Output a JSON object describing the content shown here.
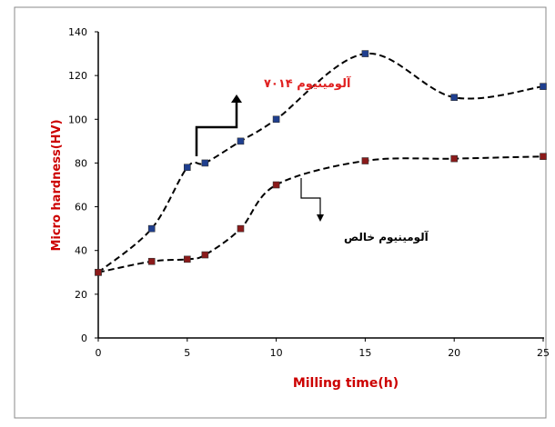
{
  "chart_data": {
    "type": "line",
    "title": "",
    "xlabel": "Milling time(h)",
    "ylabel": "Micro hardness(HV)",
    "xlim": [
      0,
      25
    ],
    "ylim": [
      0,
      140
    ],
    "x_ticks": [
      "0",
      "5",
      "10",
      "15",
      "20",
      "25"
    ],
    "y_ticks": [
      "0",
      "20",
      "40",
      "60",
      "80",
      "100",
      "120",
      "140"
    ],
    "grid": false,
    "series": [
      {
        "color": "#1f3f8f",
        "points": [
          [
            0,
            30
          ],
          [
            3,
            50
          ],
          [
            5,
            78
          ],
          [
            6,
            80
          ],
          [
            8,
            90
          ],
          [
            10,
            100
          ],
          [
            15,
            130
          ],
          [
            20,
            110
          ],
          [
            25,
            115
          ]
        ]
      },
      {
        "color": "#8b1a1a",
        "points": [
          [
            0,
            30
          ],
          [
            3,
            35
          ],
          [
            5,
            36
          ],
          [
            6,
            38
          ],
          [
            8,
            50
          ],
          [
            10,
            70
          ],
          [
            15,
            81
          ],
          [
            20,
            82
          ],
          [
            25,
            83
          ]
        ]
      }
    ],
    "annotations": [
      {
        "text": "آلومینیوم ۷۰۱۴",
        "color": "#e02020"
      },
      {
        "text": "آلومینیوم خالص",
        "color": "#000000"
      }
    ]
  }
}
